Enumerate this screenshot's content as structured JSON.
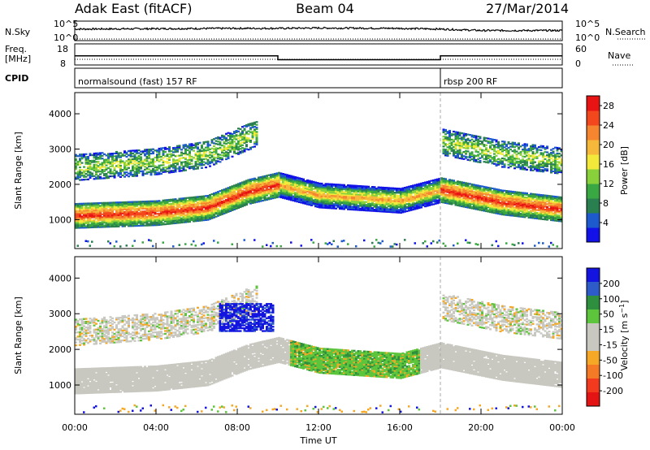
{
  "header": {
    "station": "Adak East (fitACF)",
    "beam": "Beam 04",
    "date": "27/Mar/2014"
  },
  "panel_labels": {
    "nsky": "N.Sky",
    "nsearch": "N.Search",
    "freq_line1": "Freq.",
    "freq_line2": "[MHz]",
    "nave": "Nave",
    "cpid": "CPID",
    "noise_top": "10^5",
    "noise_bottom": "10^0",
    "noise_right_top": "10^5",
    "noise_right_bottom": "10^0",
    "freq_top": "18",
    "freq_bottom": "8",
    "nave_top": "60",
    "nave_bottom": "0"
  },
  "cpid_modes": [
    {
      "label": "normalsound (fast) 157 RF",
      "start_hour": 0,
      "end_hour": 18
    },
    {
      "label": "rbsp 200 RF",
      "start_hour": 18,
      "end_hour": 24
    }
  ],
  "colors": {
    "power": [
      "#1212e8",
      "#1c5acd",
      "#2a7f50",
      "#3aa842",
      "#88d13a",
      "#f2e93a",
      "#f5b83a",
      "#f5852e",
      "#f3481e",
      "#e81414"
    ],
    "velocity": [
      "#1414e0",
      "#2d5cc8",
      "#2e8f3e",
      "#5dc53c",
      "#c8c8c0",
      "#c8c8c0",
      "#f5a826",
      "#f57a26",
      "#f23a1e",
      "#e41414"
    ],
    "gray": "#c8c8c0"
  },
  "chart_data": [
    {
      "type": "line",
      "name": "noise",
      "x_range": [
        0,
        24
      ],
      "series": [
        {
          "name": "N.Sky",
          "x": [
            0,
            4,
            8,
            10,
            12,
            16,
            18,
            20,
            24
          ],
          "y": [
            3.0,
            3.1,
            3.2,
            3.2,
            3.3,
            3.2,
            3.0,
            2.6,
            2.6
          ]
        },
        {
          "name": "N.Search",
          "x": [
            0,
            24
          ],
          "y": [
            0,
            0
          ]
        }
      ]
    },
    {
      "type": "line",
      "name": "frequency",
      "series": [
        {
          "name": "Freq.",
          "x": [
            0,
            10,
            10,
            18,
            18,
            24
          ],
          "y": [
            12.3,
            12.3,
            10.3,
            10.3,
            12.3,
            12.3
          ]
        },
        {
          "name": "Nave",
          "x": [
            0,
            24
          ],
          "y": [
            15,
            15
          ]
        }
      ]
    },
    {
      "type": "heatmap",
      "name": "power",
      "ylabel": "Slant Range [km]",
      "colorbar_label": "Power [dB]",
      "colorbar_ticks": [
        "4",
        "8",
        "12",
        "16",
        "20",
        "24",
        "28"
      ],
      "colorbar_range": [
        0,
        30
      ],
      "y_ticks": [
        "1000",
        "2000",
        "3000",
        "4000"
      ],
      "y_range": [
        180,
        4600
      ],
      "x_range": [
        0,
        24
      ]
    },
    {
      "type": "heatmap",
      "name": "velocity",
      "ylabel": "Slant Range [km]",
      "colorbar_label": "Velocity [m s^-1]",
      "colorbar_ticks": [
        "200",
        "100",
        "50",
        "15",
        "-15",
        "-50",
        "-100",
        "-200"
      ],
      "y_ticks": [
        "1000",
        "2000",
        "3000",
        "4000"
      ],
      "y_range": [
        180,
        4600
      ],
      "x_range": [
        0,
        24
      ],
      "xlabel": "Time UT",
      "x_ticks": [
        "00:00",
        "04:00",
        "08:00",
        "12:00",
        "16:00",
        "20:00",
        "00:00"
      ]
    }
  ]
}
